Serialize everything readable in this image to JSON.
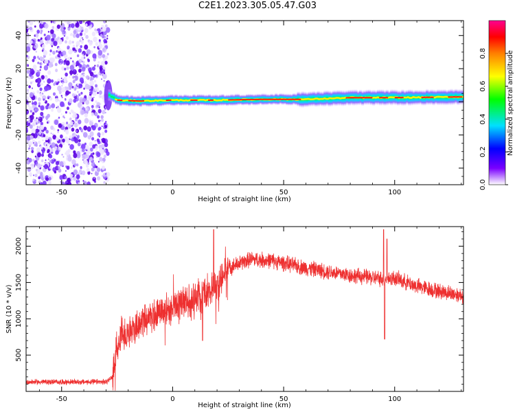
{
  "title": "C2E1.2023.305.05.47.G03",
  "chart_data": [
    {
      "type": "heatmap",
      "xlabel": "Height of straight line (km)",
      "ylabel": "Frequency (Hz)",
      "xlim": [
        -66,
        131
      ],
      "ylim": [
        -50,
        49
      ],
      "xticks": [
        -50,
        0,
        50,
        100
      ],
      "yticks": [
        -40,
        -20,
        0,
        20,
        40
      ],
      "colorbar": {
        "label": "Normalized spectral amplitude",
        "range": [
          0,
          1
        ],
        "ticks": [
          "0.0",
          "0.2",
          "0.4",
          "0.6",
          "0.8"
        ],
        "colors": [
          "#ffffff",
          "#7a00ff",
          "#0000ff",
          "#00e0ff",
          "#00ff00",
          "#ffff00",
          "#ff8000",
          "#ff0000",
          "#ff0090"
        ]
      },
      "noise_region_km": [
        -66,
        -29
      ],
      "ridge": [
        {
          "x": -29,
          "y": 4
        },
        {
          "x": -25,
          "y": 1
        },
        {
          "x": -15,
          "y": 0.5
        },
        {
          "x": 0,
          "y": 1
        },
        {
          "x": 20,
          "y": 1
        },
        {
          "x": 40,
          "y": 1.5
        },
        {
          "x": 60,
          "y": 1.5
        },
        {
          "x": 80,
          "y": 2.5
        },
        {
          "x": 100,
          "y": 2.5
        },
        {
          "x": 131,
          "y": 3
        }
      ]
    },
    {
      "type": "line",
      "xlabel": "Height of straight line (km)",
      "ylabel": "SNR (10 * v/v)",
      "xlim": [
        -66,
        131
      ],
      "ylim": [
        0,
        2270
      ],
      "xticks": [
        -50,
        0,
        50,
        100
      ],
      "yticks": [
        500,
        1000,
        1500,
        2000
      ],
      "color": "#ee3030",
      "envelope": [
        {
          "x": -66,
          "y": 130
        },
        {
          "x": -30,
          "y": 130
        },
        {
          "x": -27,
          "y": 200
        },
        {
          "x": -25,
          "y": 700
        },
        {
          "x": -20,
          "y": 800
        },
        {
          "x": -10,
          "y": 1050
        },
        {
          "x": 0,
          "y": 1150
        },
        {
          "x": 10,
          "y": 1300
        },
        {
          "x": 20,
          "y": 1450
        },
        {
          "x": 25,
          "y": 1700
        },
        {
          "x": 35,
          "y": 1820
        },
        {
          "x": 45,
          "y": 1800
        },
        {
          "x": 60,
          "y": 1700
        },
        {
          "x": 80,
          "y": 1600
        },
        {
          "x": 95,
          "y": 1550
        },
        {
          "x": 100,
          "y": 1560
        },
        {
          "x": 110,
          "y": 1450
        },
        {
          "x": 120,
          "y": 1380
        },
        {
          "x": 131,
          "y": 1320
        }
      ],
      "spikes": [
        {
          "x": 18.5,
          "y": 2230
        },
        {
          "x": 95,
          "y": 2230
        },
        {
          "x": 96.5,
          "y": 2100
        },
        {
          "x": 95.5,
          "y": 720
        },
        {
          "x": 13.5,
          "y": 700
        }
      ]
    }
  ]
}
